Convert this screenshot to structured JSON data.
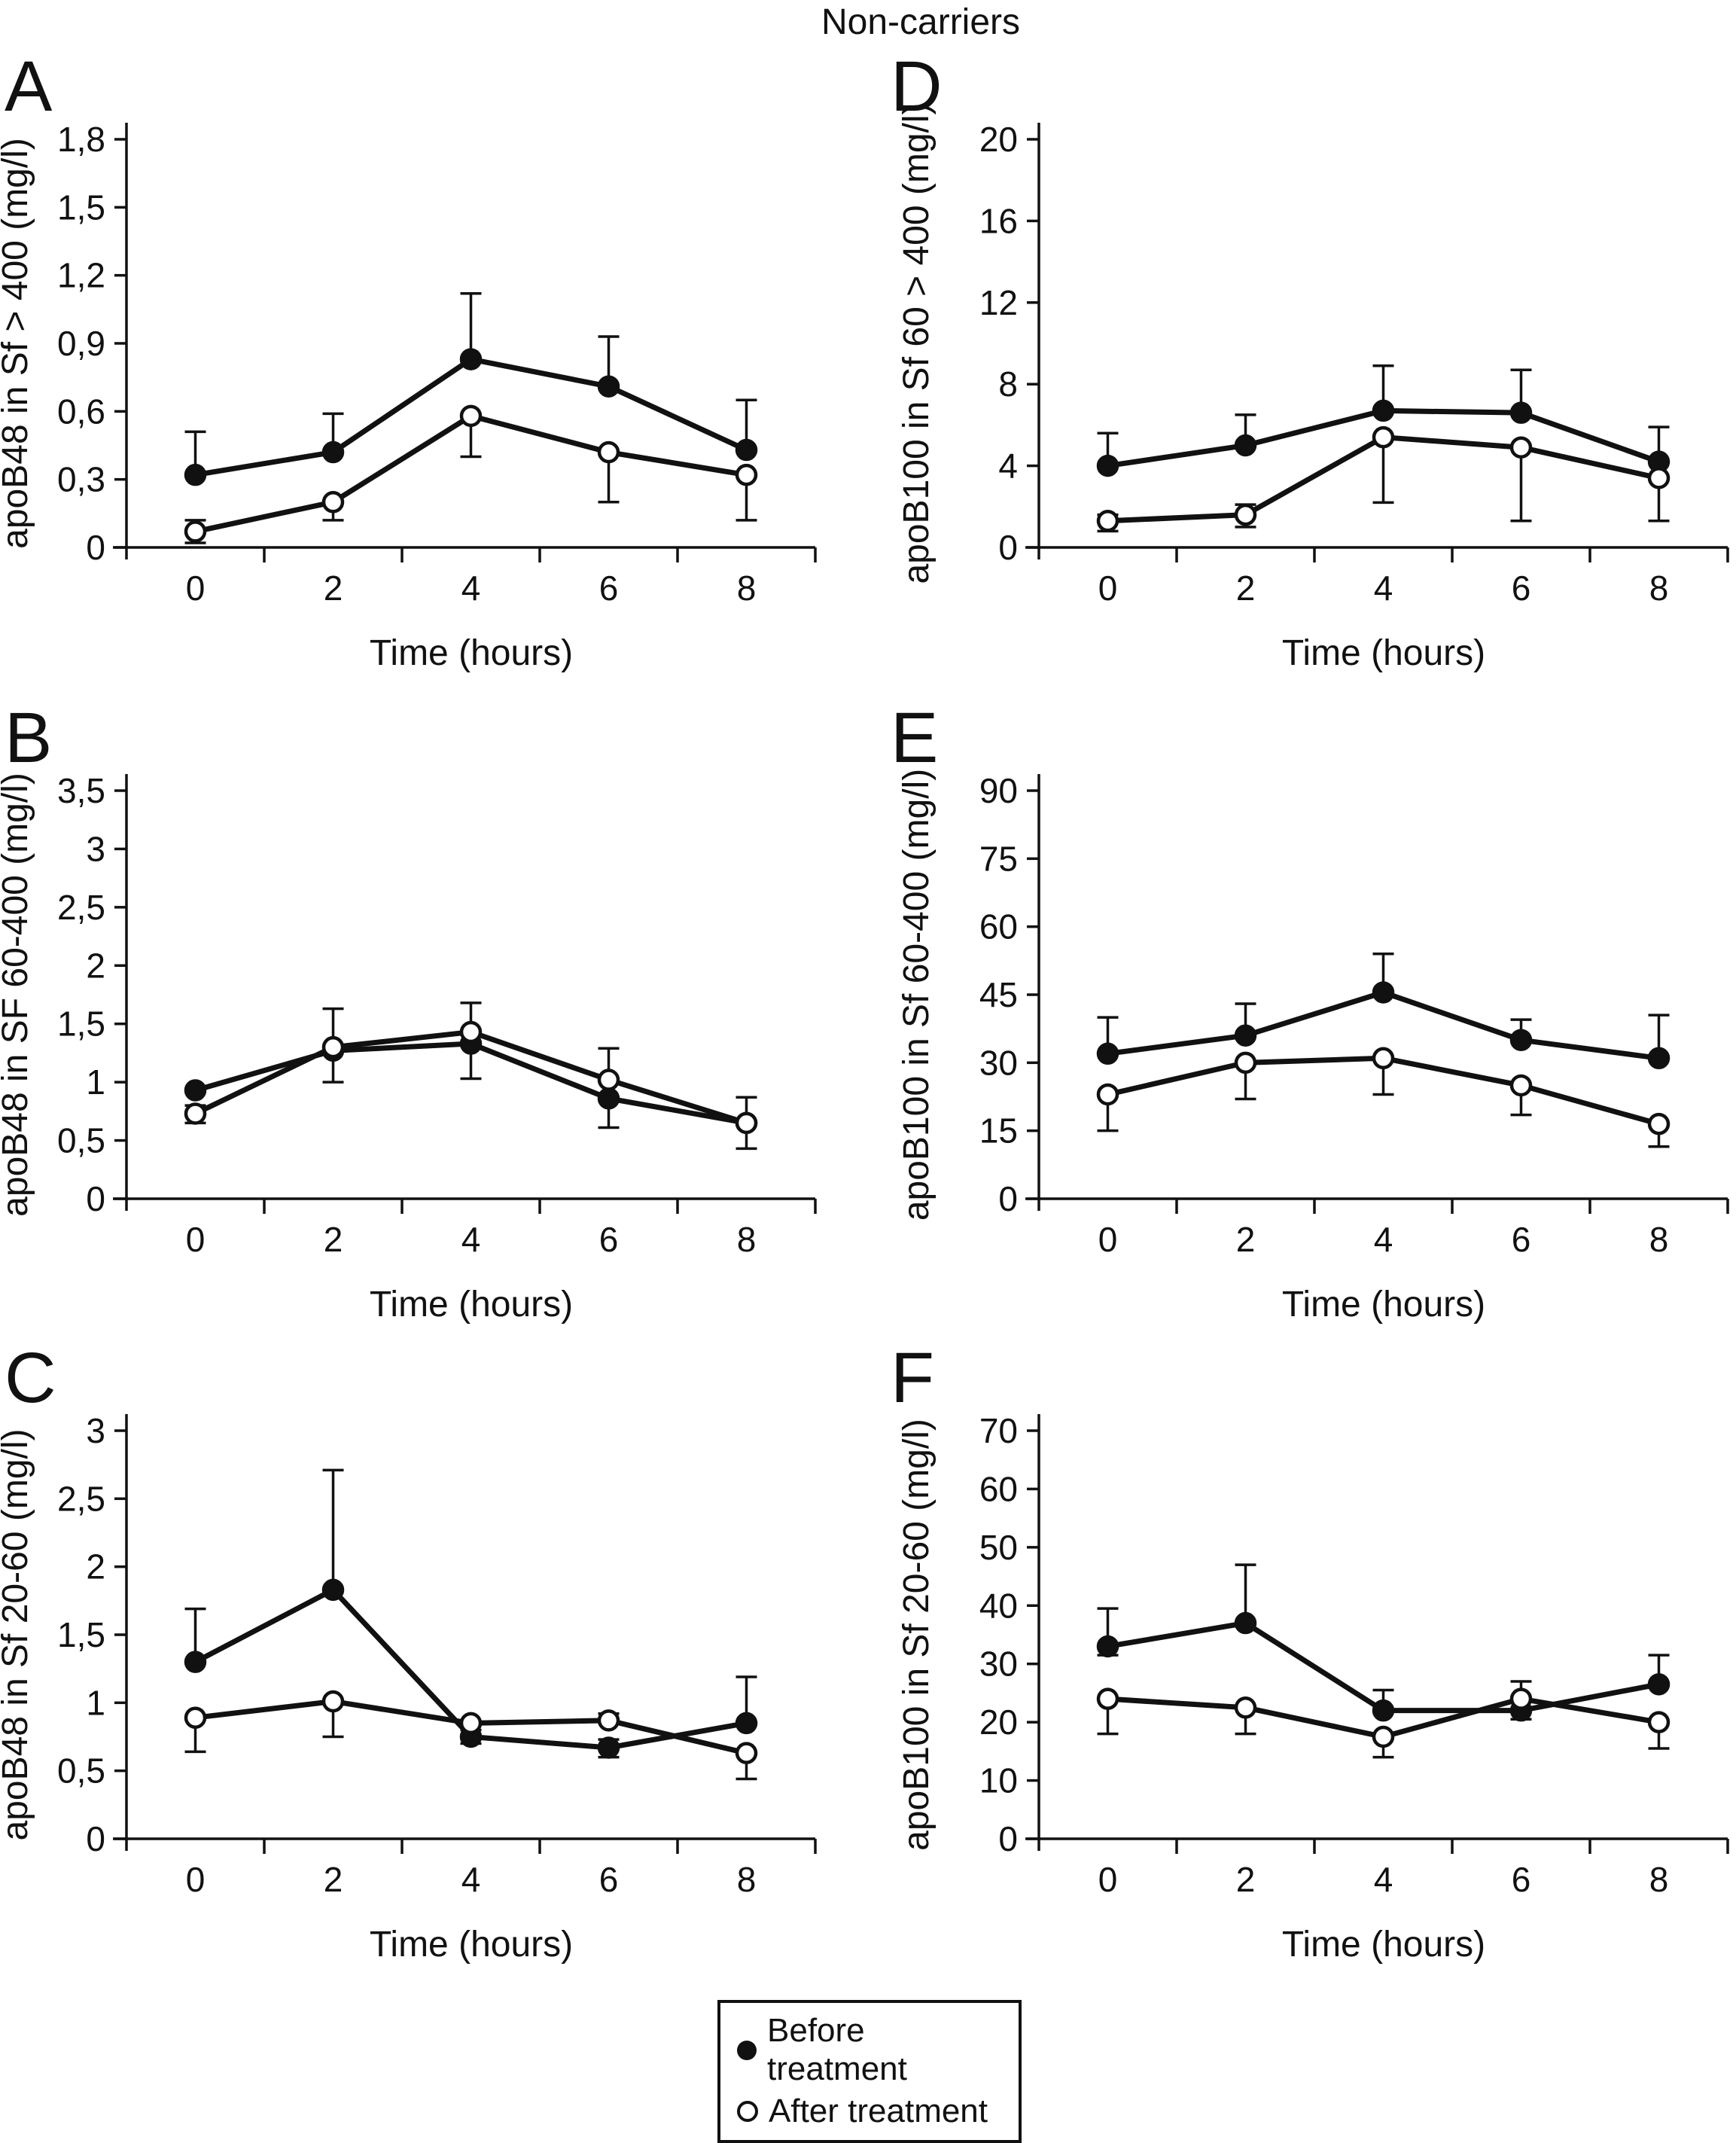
{
  "title": "Non-carriers",
  "legend": {
    "items": [
      {
        "label": "Before treatment",
        "marker": "filled-circle"
      },
      {
        "label": "After treatment",
        "marker": "open-circle"
      }
    ]
  },
  "chart_data": [
    {
      "id": "A",
      "panel_label": "A",
      "type": "line",
      "xlabel": "Time (hours)",
      "ylabel": "apoB48 in Sf > 400 (mg/l)",
      "x_values": [
        0,
        2,
        4,
        6,
        8
      ],
      "x_labels": [
        "0",
        "2",
        "4",
        "6",
        "8"
      ],
      "ymax": 1.8,
      "yticks": [
        0,
        0.3,
        0.6,
        0.9,
        1.2,
        1.5,
        1.8
      ],
      "ytick_labels": [
        "0",
        "0,3",
        "0,6",
        "0,9",
        "1,2",
        "1,5",
        "1,8"
      ],
      "legend_position": "none",
      "grid": false,
      "series": [
        {
          "name": "Before treatment",
          "marker": "filled",
          "values": [
            0.32,
            0.42,
            0.83,
            0.71,
            0.43
          ],
          "err_up": [
            0.19,
            0.17,
            0.29,
            0.22,
            0.22
          ],
          "err_down": [
            0,
            0,
            0,
            0,
            0
          ]
        },
        {
          "name": "After treatment",
          "marker": "open",
          "values": [
            0.07,
            0.2,
            0.58,
            0.42,
            0.32
          ],
          "err_up": [
            0.05,
            0,
            0,
            0,
            0
          ],
          "err_down": [
            0.05,
            0.08,
            0.18,
            0.22,
            0.2
          ]
        }
      ]
    },
    {
      "id": "B",
      "panel_label": "B",
      "type": "line",
      "xlabel": "Time (hours)",
      "ylabel": "apoB48 in SF 60-400 (mg/l)",
      "x_values": [
        0,
        2,
        4,
        6,
        8
      ],
      "x_labels": [
        "0",
        "2",
        "4",
        "6",
        "8"
      ],
      "ymax": 3.5,
      "yticks": [
        0,
        0.5,
        1,
        1.5,
        2,
        2.5,
        3,
        3.5
      ],
      "ytick_labels": [
        "0",
        "0,5",
        "1",
        "1,5",
        "2",
        "2,5",
        "3",
        "3,5"
      ],
      "legend_position": "none",
      "grid": false,
      "series": [
        {
          "name": "Before treatment",
          "marker": "filled",
          "values": [
            0.93,
            1.27,
            1.33,
            0.86,
            0.65
          ],
          "err_up": [
            0,
            0,
            0,
            0,
            0
          ],
          "err_down": [
            0,
            0.27,
            0.3,
            0.25,
            0.22
          ]
        },
        {
          "name": "After treatment",
          "marker": "open",
          "values": [
            0.73,
            1.3,
            1.43,
            1.02,
            0.65
          ],
          "err_up": [
            0.07,
            0.33,
            0.25,
            0.27,
            0.22
          ],
          "err_down": [
            0.08,
            0,
            0,
            0,
            0
          ]
        }
      ]
    },
    {
      "id": "C",
      "panel_label": "C",
      "type": "line",
      "xlabel": "Time (hours)",
      "ylabel": "apoB48 in Sf 20-60 (mg/l)",
      "x_values": [
        0,
        2,
        4,
        6,
        8
      ],
      "x_labels": [
        "0",
        "2",
        "4",
        "6",
        "8"
      ],
      "ymax": 3,
      "yticks": [
        0,
        0.5,
        1,
        1.5,
        2,
        2.5,
        3
      ],
      "ytick_labels": [
        "0",
        "0,5",
        "1",
        "1,5",
        "2",
        "2,5",
        "3"
      ],
      "legend_position": "none",
      "grid": false,
      "series": [
        {
          "name": "Before treatment",
          "marker": "filled",
          "values": [
            1.3,
            1.83,
            0.75,
            0.67,
            0.85
          ],
          "err_up": [
            0.39,
            0.88,
            0.05,
            0.06,
            0.34
          ],
          "err_down": [
            0,
            0,
            0.05,
            0.07,
            0
          ]
        },
        {
          "name": "After treatment",
          "marker": "open",
          "values": [
            0.89,
            1.01,
            0.85,
            0.87,
            0.63
          ],
          "err_up": [
            0,
            0,
            0,
            0.05,
            0
          ],
          "err_down": [
            0.25,
            0.26,
            0,
            0,
            0.19
          ]
        }
      ]
    },
    {
      "id": "D",
      "panel_label": "D",
      "type": "line",
      "xlabel": "Time (hours)",
      "ylabel": "apoB100 in Sf 60 > 400 (mg/l)",
      "x_values": [
        0,
        2,
        4,
        6,
        8
      ],
      "x_labels": [
        "0",
        "2",
        "4",
        "6",
        "8"
      ],
      "ymax": 20,
      "yticks": [
        0,
        4,
        8,
        12,
        16,
        20
      ],
      "ytick_labels": [
        "0",
        "4",
        "8",
        "12",
        "16",
        "20"
      ],
      "legend_position": "none",
      "grid": false,
      "series": [
        {
          "name": "Before treatment",
          "marker": "filled",
          "values": [
            4,
            5,
            6.7,
            6.6,
            4.2
          ],
          "err_up": [
            1.6,
            1.5,
            2.2,
            2.1,
            1.7
          ],
          "err_down": [
            0,
            0,
            0,
            0,
            0
          ]
        },
        {
          "name": "After treatment",
          "marker": "open",
          "values": [
            1.3,
            1.6,
            5.4,
            4.9,
            3.4
          ],
          "err_up": [
            0.3,
            0.5,
            0,
            0,
            0
          ],
          "err_down": [
            0.5,
            0.6,
            3.2,
            3.6,
            2.1
          ]
        }
      ]
    },
    {
      "id": "E",
      "panel_label": "E",
      "type": "line",
      "xlabel": "Time (hours)",
      "ylabel": "apoB100 in Sf 60-400 (mg/l)",
      "x_values": [
        0,
        2,
        4,
        6,
        8
      ],
      "x_labels": [
        "0",
        "2",
        "4",
        "6",
        "8"
      ],
      "ymax": 90,
      "yticks": [
        0,
        15,
        30,
        45,
        60,
        75,
        90
      ],
      "ytick_labels": [
        "0",
        "15",
        "30",
        "45",
        "60",
        "75",
        "90"
      ],
      "legend_position": "none",
      "grid": false,
      "series": [
        {
          "name": "Before treatment",
          "marker": "filled",
          "values": [
            32,
            36,
            45.5,
            35,
            31
          ],
          "err_up": [
            8,
            7,
            8.5,
            4.5,
            9.5
          ],
          "err_down": [
            0,
            0,
            0,
            0,
            0
          ]
        },
        {
          "name": "After treatment",
          "marker": "open",
          "values": [
            23,
            30,
            31,
            25,
            16.5
          ],
          "err_up": [
            0,
            0,
            0,
            0,
            0
          ],
          "err_down": [
            8,
            8,
            8,
            6.5,
            5
          ]
        }
      ]
    },
    {
      "id": "F",
      "panel_label": "F",
      "type": "line",
      "xlabel": "Time (hours)",
      "ylabel": "apoB100 in Sf 20-60 (mg/l)",
      "x_values": [
        0,
        2,
        4,
        6,
        8
      ],
      "x_labels": [
        "0",
        "2",
        "4",
        "6",
        "8"
      ],
      "ymax": 70,
      "yticks": [
        0,
        10,
        20,
        30,
        40,
        50,
        60,
        70
      ],
      "ytick_labels": [
        "0",
        "10",
        "20",
        "30",
        "40",
        "50",
        "60",
        "70"
      ],
      "legend_position": "none",
      "grid": false,
      "series": [
        {
          "name": "Before treatment",
          "marker": "filled",
          "values": [
            33,
            37,
            22,
            22,
            26.5
          ],
          "err_up": [
            6.5,
            10,
            3.5,
            1.5,
            5
          ],
          "err_down": [
            1.5,
            0,
            0,
            1.5,
            0
          ]
        },
        {
          "name": "After treatment",
          "marker": "open",
          "values": [
            24,
            22.5,
            17.5,
            24,
            20
          ],
          "err_up": [
            0,
            0,
            0,
            3,
            0
          ],
          "err_down": [
            6,
            4.5,
            3.5,
            0,
            4.5
          ]
        }
      ]
    }
  ],
  "colors": {
    "ink": "#111111",
    "background": "#ffffff"
  }
}
